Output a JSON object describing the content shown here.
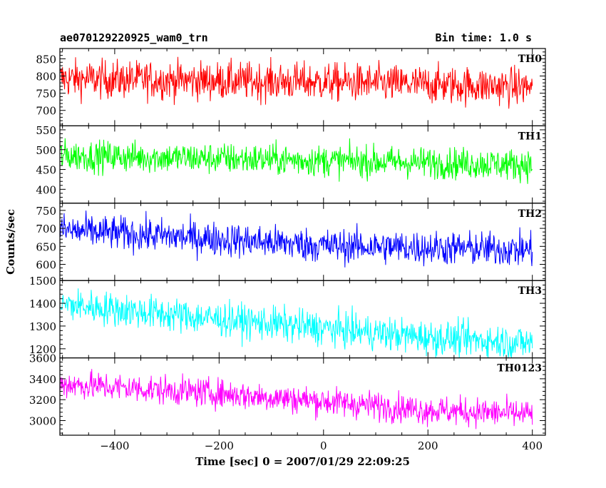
{
  "header": {
    "left": "ae070129220925_wam0_trn",
    "right": "Bin time: 1.0 s"
  },
  "chart_data": {
    "type": "line",
    "ylabel": "Counts/sec",
    "xlabel": "Time [sec] 0 = 2007/01/29 22:09:25",
    "xlim": [
      -505,
      425
    ],
    "xticks": [
      -400,
      -200,
      0,
      200,
      400
    ],
    "bin_time": "1.0 s",
    "x_range": [
      -504,
      400
    ],
    "grid": false,
    "panels": [
      {
        "name": "TH0",
        "color": "#ff0000",
        "ylim": [
          655,
          880
        ],
        "yticks": [
          700,
          750,
          800,
          850
        ],
        "trend": [
          [
            -500,
            792
          ],
          [
            0,
            782
          ],
          [
            400,
            768
          ]
        ],
        "noise": 28
      },
      {
        "name": "TH1",
        "color": "#00ff00",
        "ylim": [
          365,
          560
        ],
        "yticks": [
          400,
          450,
          500,
          550
        ],
        "trend": [
          [
            -500,
            485
          ],
          [
            -100,
            475
          ],
          [
            0,
            472
          ],
          [
            400,
            462
          ]
        ],
        "noise": 20
      },
      {
        "name": "TH2",
        "color": "#0000ff",
        "ylim": [
          555,
          770
        ],
        "yticks": [
          600,
          650,
          700,
          750
        ],
        "trend": [
          [
            -500,
            695
          ],
          [
            -200,
            670
          ],
          [
            0,
            652
          ],
          [
            400,
            640
          ]
        ],
        "noise": 24
      },
      {
        "name": "TH3",
        "color": "#00ffff",
        "ylim": [
          1160,
          1500
        ],
        "yticks": [
          1200,
          1300,
          1400,
          1500
        ],
        "trend": [
          [
            -500,
            1395
          ],
          [
            -200,
            1330
          ],
          [
            0,
            1290
          ],
          [
            200,
            1250
          ],
          [
            400,
            1225
          ]
        ],
        "noise": 38
      },
      {
        "name": "TH0123",
        "color": "#ff00ff",
        "ylim": [
          2860,
          3600
        ],
        "yticks": [
          3000,
          3200,
          3400,
          3600
        ],
        "trend": [
          [
            -500,
            3350
          ],
          [
            -200,
            3260
          ],
          [
            0,
            3185
          ],
          [
            200,
            3100
          ],
          [
            400,
            3060
          ]
        ],
        "noise": 70
      }
    ]
  }
}
